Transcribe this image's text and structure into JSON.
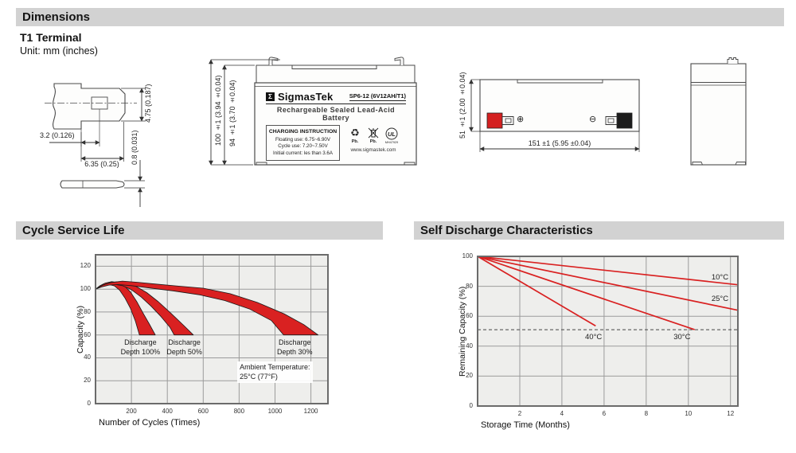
{
  "sections": {
    "dimensions": {
      "title": "Dimensions",
      "subtitle": "T1 Terminal",
      "unit_note": "Unit: mm (inches)"
    },
    "cycle_life": {
      "title": "Cycle Service Life"
    },
    "self_discharge": {
      "title": "Self Discharge Characteristics"
    }
  },
  "dimensions": {
    "terminal_drawing": {
      "dim_width_small": "3.2 (0.126)",
      "dim_width_large": "6.35 (0.25)",
      "dim_height": "4.75 (0.187)",
      "dim_thickness": "0.8 (0.031)"
    },
    "front_view": {
      "dim_height_total": "100 ±1 (3.94 ±0.04)",
      "dim_height_body": "94 ±1 (3.70 ±0.04)",
      "label": {
        "logo_glyph": "Σ",
        "brand": "SigmasTek",
        "model": "SP6-12 (6V12AH/T1)",
        "subtitle": "Rechargeable Sealed Lead-Acid Battery",
        "charging_title": "CHARGING INSTRUCTION",
        "charging_lines": [
          "Floating use: 6.75~6.90V",
          "Cycle use: 7.20~7.50V",
          "Initial current: les than 3.6A"
        ],
        "recycle_glyph": "♻",
        "pb_text": "Pb.",
        "ul_text": "UL",
        "ul_code": "MH47929",
        "website": "www.sigmastek.com"
      }
    },
    "top_view": {
      "dim_height": "51 ±1 (2.00 ±0.04)",
      "dim_width": "151 ±1 (5.95 ±0.04)",
      "positive_symbol": "⊕",
      "negative_symbol": "⊖"
    }
  },
  "chart_data": [
    {
      "type": "area",
      "title": "Cycle Service Life",
      "xlabel": "Number of Cycles (Times)",
      "ylabel": "Capacity (%)",
      "xlim": [
        0,
        1295
      ],
      "ylim": [
        0,
        130
      ],
      "x_ticks": [
        200,
        400,
        600,
        800,
        1000,
        1200
      ],
      "y_ticks": [
        0,
        20,
        40,
        60,
        80,
        100,
        120
      ],
      "grid": true,
      "plot_bg": "#eeeeec",
      "grid_color": "#9b9b9b",
      "border_color": "#6b6b6b",
      "series_color": "#d92121",
      "bands": [
        {
          "name": "Discharge Depth 100%",
          "label": "Discharge\nDepth 100%",
          "label_pos": [
            250,
            58
          ],
          "upper": [
            [
              0,
              100
            ],
            [
              25,
              103
            ],
            [
              55,
              105.3
            ],
            [
              90,
              106.5
            ],
            [
              125,
              105.8
            ],
            [
              160,
              103
            ],
            [
              195,
              97.5
            ],
            [
              230,
              89
            ],
            [
              265,
              79
            ],
            [
              300,
              69.5
            ],
            [
              333,
              60
            ]
          ],
          "lower": [
            [
              0,
              100
            ],
            [
              20,
              101.8
            ],
            [
              45,
              103.2
            ],
            [
              75,
              104
            ],
            [
              105,
              102.8
            ],
            [
              135,
              99
            ],
            [
              165,
              92
            ],
            [
              195,
              83
            ],
            [
              222,
              72
            ],
            [
              245,
              60
            ]
          ]
        },
        {
          "name": "Discharge Depth 50%",
          "label": "Discharge\nDepth 50%",
          "label_pos": [
            495,
            58
          ],
          "upper": [
            [
              0,
              100
            ],
            [
              35,
              103.2
            ],
            [
              75,
              105.3
            ],
            [
              120,
              106.4
            ],
            [
              170,
              105.6
            ],
            [
              225,
              102.5
            ],
            [
              285,
              97
            ],
            [
              350,
              89
            ],
            [
              420,
              79
            ],
            [
              490,
              68.5
            ],
            [
              545,
              60
            ]
          ],
          "lower": [
            [
              0,
              100
            ],
            [
              30,
              102
            ],
            [
              65,
              103.6
            ],
            [
              105,
              104.2
            ],
            [
              150,
              103
            ],
            [
              200,
              99.5
            ],
            [
              255,
              93
            ],
            [
              310,
              85
            ],
            [
              365,
              76
            ],
            [
              415,
              66.5
            ],
            [
              438,
              60
            ]
          ]
        },
        {
          "name": "Discharge Depth 30%",
          "label": "Discharge\nDepth 30%",
          "label_pos": [
            1110,
            58
          ],
          "upper": [
            [
              0,
              100
            ],
            [
              40,
              103.5
            ],
            [
              90,
              105.8
            ],
            [
              150,
              107
            ],
            [
              230,
              106
            ],
            [
              330,
              104.5
            ],
            [
              450,
              102.8
            ],
            [
              600,
              100.8
            ],
            [
              750,
              96
            ],
            [
              900,
              88.5
            ],
            [
              1050,
              78.5
            ],
            [
              1160,
              69
            ],
            [
              1240,
              60
            ]
          ],
          "lower": [
            [
              0,
              100
            ],
            [
              35,
              102
            ],
            [
              75,
              103.5
            ],
            [
              125,
              104
            ],
            [
              200,
              103
            ],
            [
              300,
              101
            ],
            [
              430,
              98.5
            ],
            [
              580,
              95
            ],
            [
              720,
              90
            ],
            [
              860,
              82.5
            ],
            [
              980,
              72.5
            ],
            [
              1048,
              60
            ]
          ]
        }
      ],
      "annotation": {
        "text": "Ambient Temperature:\n25°C (77°F)",
        "pos": [
          790,
          37
        ]
      }
    },
    {
      "type": "line",
      "title": "Self Discharge Characteristics",
      "xlabel": "Storage Time (Months)",
      "ylabel": "Remaining Capacity (%)",
      "xlim": [
        0,
        12.35
      ],
      "ylim": [
        0,
        100
      ],
      "x_ticks": [
        2,
        4,
        6,
        8,
        10,
        12
      ],
      "y_ticks": [
        0,
        20,
        40,
        60,
        80,
        100
      ],
      "grid": true,
      "plot_bg": "#eeeeec",
      "grid_color": "#9b9b9b",
      "border_color": "#6b6b6b",
      "series_color": "#d92121",
      "dashed_line_y": 51,
      "series": [
        {
          "name": "10°C",
          "points": [
            [
              0,
              100
            ],
            [
              12.35,
              81
            ]
          ],
          "label_pos": [
            11.5,
            85.5
          ]
        },
        {
          "name": "25°C",
          "points": [
            [
              0,
              100
            ],
            [
              12.35,
              64
            ]
          ],
          "label_pos": [
            11.5,
            71.3
          ]
        },
        {
          "name": "30°C",
          "points": [
            [
              0,
              100
            ],
            [
              10.3,
              51
            ]
          ],
          "label_pos": [
            9.7,
            46
          ]
        },
        {
          "name": "40°C",
          "points": [
            [
              0,
              100
            ],
            [
              5.6,
              53.5
            ]
          ],
          "label_pos": [
            5.5,
            46
          ]
        }
      ]
    }
  ]
}
